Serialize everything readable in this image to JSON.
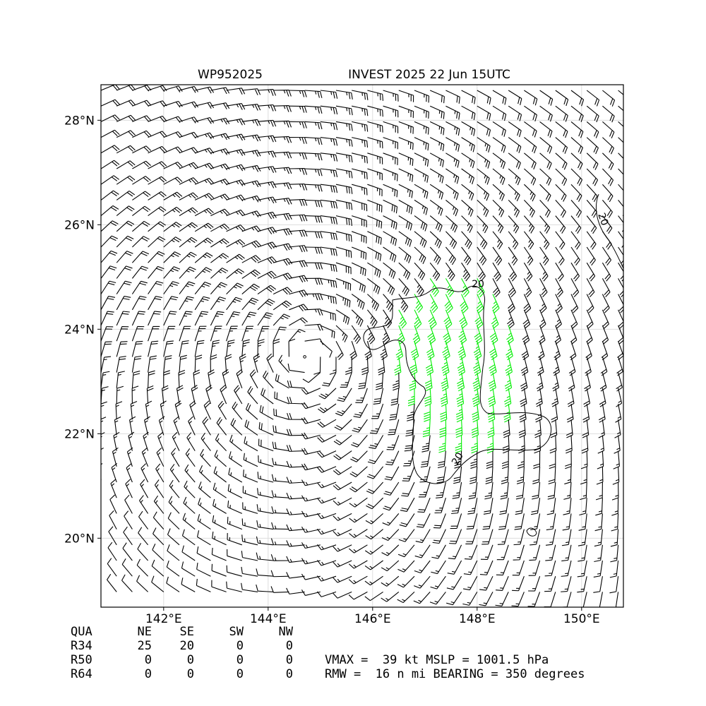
{
  "map": {
    "title": "WP952025",
    "subtitle": "INVEST 2025 22 Jun 15UTC",
    "xlim": [
      140.8,
      150.8
    ],
    "ylim": [
      18.68,
      28.68
    ],
    "xticks": [
      {
        "value": 142,
        "label": "142°E"
      },
      {
        "value": 144,
        "label": "144°E"
      },
      {
        "value": 146,
        "label": "146°E"
      },
      {
        "value": 148,
        "label": "148°E"
      },
      {
        "value": 150,
        "label": "150°E"
      }
    ],
    "yticks": [
      {
        "value": 20,
        "label": "20°N"
      },
      {
        "value": 22,
        "label": "22°N"
      },
      {
        "value": 24,
        "label": "24°N"
      },
      {
        "value": 26,
        "label": "26°N"
      },
      {
        "value": 28,
        "label": "28°N"
      }
    ],
    "contour_labels": [
      "20",
      "20",
      "20"
    ]
  },
  "table": {
    "header": [
      "QUA",
      "NE",
      "SE",
      "SW",
      "NW"
    ],
    "rows": [
      [
        "R34",
        "25",
        "20",
        "0",
        "0"
      ],
      [
        "R50",
        "0",
        "0",
        "0",
        "0"
      ],
      [
        "R64",
        "0",
        "0",
        "0",
        "0"
      ]
    ]
  },
  "stats": [
    "VMAX =  39 kt MSLP = 1001.5 hPa",
    "RMW =  16 n mi BEARING = 350 degrees"
  ]
}
